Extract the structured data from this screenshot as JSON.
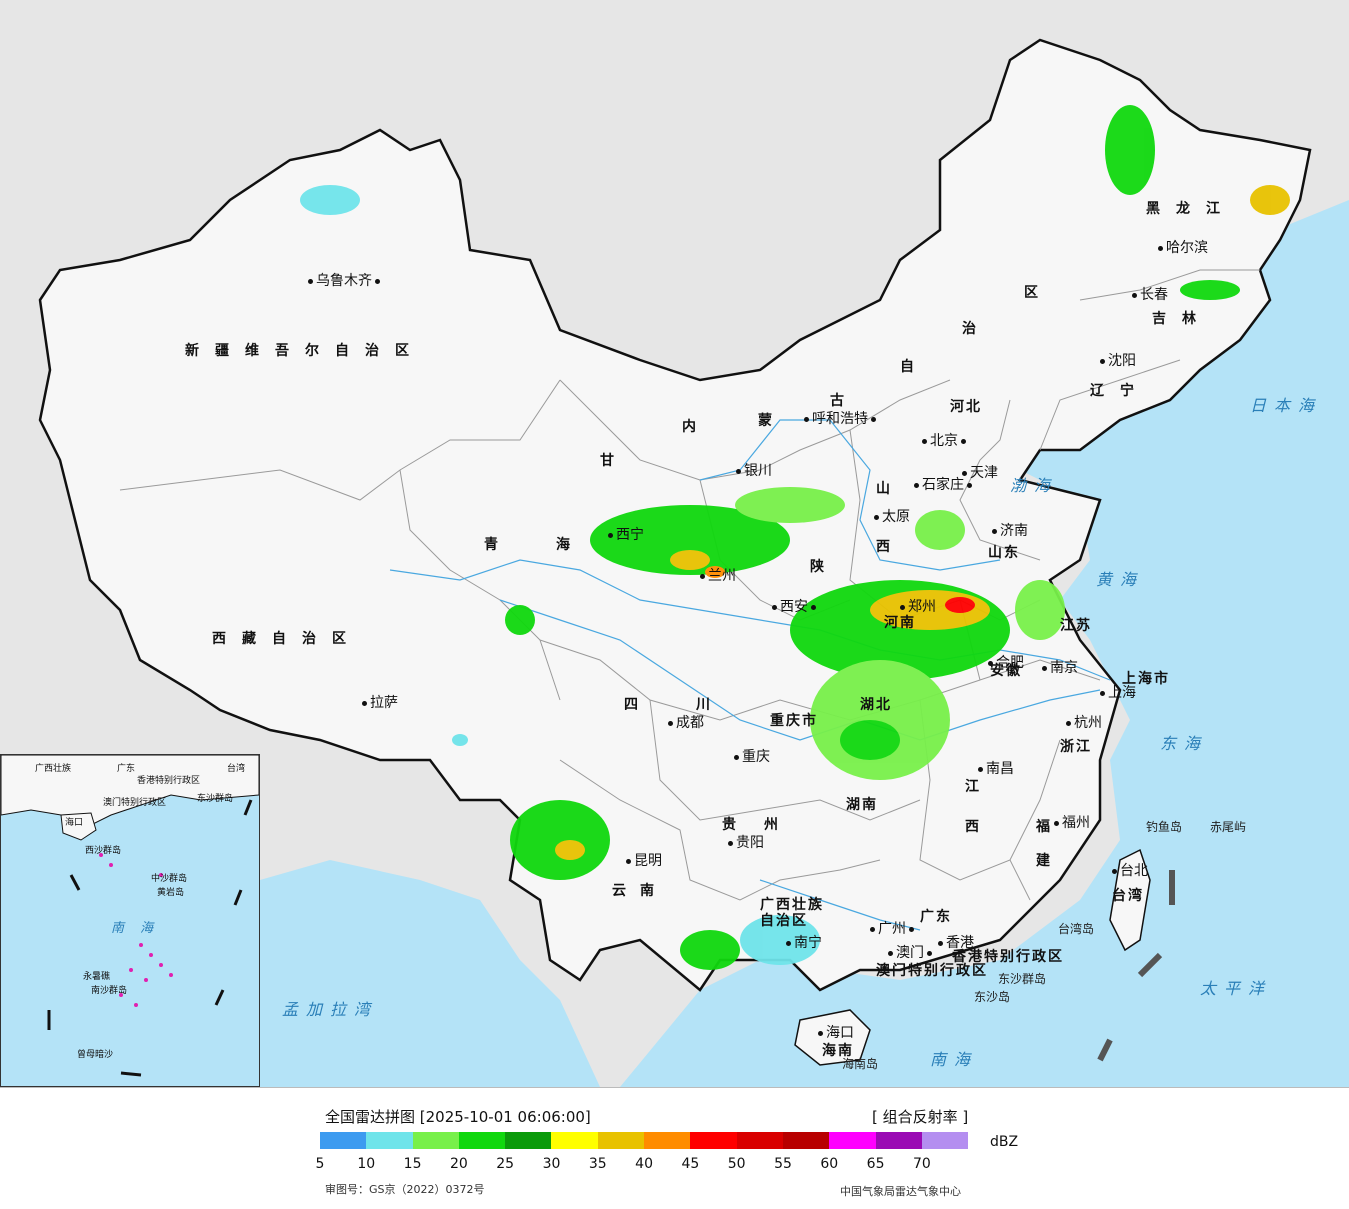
{
  "legend": {
    "title": "全国雷达拼图 [2025-10-01 06:06:00]",
    "product": "[ 组合反射率 ]",
    "unit": "dBZ",
    "colors": [
      "#3d9bf0",
      "#6fe4ea",
      "#78f04a",
      "#10d80e",
      "#0a9a0a",
      "#ffff00",
      "#e8c200",
      "#ff8c00",
      "#ff0000",
      "#d90000",
      "#b80000",
      "#ff00ff",
      "#9a0ab4",
      "#b48ef0"
    ],
    "ticks": [
      "5",
      "10",
      "15",
      "20",
      "25",
      "30",
      "35",
      "40",
      "45",
      "50",
      "55",
      "60",
      "65",
      "70"
    ],
    "review_no": "审图号：GS京（2022）0372号",
    "source": "中国气象局雷达气象中心"
  },
  "map": {
    "colors": {
      "land": "#f7f7f7",
      "sea": "#b4e3f7",
      "outside": "#e6e6e6",
      "border": "#111111",
      "province": "#9a9a9a",
      "river": "#4aa8e0"
    },
    "provinces": [
      {
        "id": "xinjiang",
        "text": "新疆维吾尔自治区"
      },
      {
        "id": "xizang",
        "text": "西藏自治区"
      },
      {
        "id": "qinghai-1",
        "text": "青"
      },
      {
        "id": "qinghai-2",
        "text": "海"
      },
      {
        "id": "gansu",
        "text": "甘"
      },
      {
        "id": "sichuan-1",
        "text": "四"
      },
      {
        "id": "sichuan-2",
        "text": "川"
      },
      {
        "id": "yunnan-1",
        "text": "云"
      },
      {
        "id": "yunnan-2",
        "text": "南"
      },
      {
        "id": "guizhou-1",
        "text": "贵"
      },
      {
        "id": "guizhou-2",
        "text": "州"
      },
      {
        "id": "chongqing",
        "text": "重庆市"
      },
      {
        "id": "shaanxi",
        "text": "陕"
      },
      {
        "id": "shanxi-1",
        "text": "山"
      },
      {
        "id": "shanxi-2",
        "text": "西"
      },
      {
        "id": "henan",
        "text": "河南"
      },
      {
        "id": "hubei",
        "text": "湖北"
      },
      {
        "id": "hunan",
        "text": "湖南"
      },
      {
        "id": "hebei",
        "text": "河北"
      },
      {
        "id": "shandong",
        "text": "山东"
      },
      {
        "id": "jiangsu",
        "text": "江苏"
      },
      {
        "id": "anhui",
        "text": "安徽"
      },
      {
        "id": "zhejiang",
        "text": "浙江"
      },
      {
        "id": "jiangxi-1",
        "text": "江"
      },
      {
        "id": "jiangxi-2",
        "text": "西"
      },
      {
        "id": "fujian-1",
        "text": "福"
      },
      {
        "id": "fujian-2",
        "text": "建"
      },
      {
        "id": "guangdong",
        "text": "广东"
      },
      {
        "id": "guangxi-1",
        "text": "广西壮族"
      },
      {
        "id": "guangxi-2",
        "text": "自治区"
      },
      {
        "id": "hainan",
        "text": "海南"
      },
      {
        "id": "taiwan",
        "text": "台湾"
      },
      {
        "id": "heilongjiang",
        "text": "黑龙江"
      },
      {
        "id": "jilin",
        "text": "吉林"
      },
      {
        "id": "liaoning",
        "text": "辽宁"
      },
      {
        "id": "neimenggu-1",
        "text": "内"
      },
      {
        "id": "neimenggu-2",
        "text": "蒙"
      },
      {
        "id": "neimenggu-3",
        "text": "古"
      },
      {
        "id": "neimenggu-4",
        "text": "自"
      },
      {
        "id": "neimenggu-5",
        "text": "治"
      },
      {
        "id": "neimenggu-6",
        "text": "区"
      },
      {
        "id": "shanghai",
        "text": "上海市"
      },
      {
        "id": "hongkong",
        "text": "香港特别行政区"
      },
      {
        "id": "macau",
        "text": "澳门特别行政区"
      }
    ],
    "cities": [
      {
        "id": "urumqi",
        "text": "乌鲁木齐"
      },
      {
        "id": "lhasa",
        "text": "拉萨"
      },
      {
        "id": "xining",
        "text": "西宁"
      },
      {
        "id": "yinchuan",
        "text": "银川"
      },
      {
        "id": "lanzhou",
        "text": "兰州"
      },
      {
        "id": "chengdu",
        "text": "成都"
      },
      {
        "id": "chongqing-city",
        "text": "重庆"
      },
      {
        "id": "guiyang",
        "text": "贵阳"
      },
      {
        "id": "kunming",
        "text": "昆明"
      },
      {
        "id": "nanning",
        "text": "南宁"
      },
      {
        "id": "guangzhou",
        "text": "广州"
      },
      {
        "id": "xian",
        "text": "西安"
      },
      {
        "id": "taiyuan",
        "text": "太原"
      },
      {
        "id": "shijiazhuang",
        "text": "石家庄"
      },
      {
        "id": "beijing",
        "text": "北京"
      },
      {
        "id": "tianjin",
        "text": "天津"
      },
      {
        "id": "jinan",
        "text": "济南"
      },
      {
        "id": "zhengzhou",
        "text": "郑州"
      },
      {
        "id": "hefei",
        "text": "合肥"
      },
      {
        "id": "nanjing",
        "text": "南京"
      },
      {
        "id": "hangzhou",
        "text": "杭州"
      },
      {
        "id": "nanchang",
        "text": "南昌"
      },
      {
        "id": "fuzhou",
        "text": "福州"
      },
      {
        "id": "taibei",
        "text": "台北"
      },
      {
        "id": "haikou",
        "text": "海口"
      },
      {
        "id": "macau-city",
        "text": "澳门"
      },
      {
        "id": "hk-city",
        "text": "香港"
      },
      {
        "id": "huhehaote",
        "text": "呼和浩特"
      },
      {
        "id": "shenyang",
        "text": "沈阳"
      },
      {
        "id": "changchun",
        "text": "长春"
      },
      {
        "id": "harbin",
        "text": "哈尔滨"
      },
      {
        "id": "shanghai-city",
        "text": "上海"
      }
    ],
    "seas": [
      {
        "id": "bohai",
        "text": "渤海"
      },
      {
        "id": "huanghai",
        "text": "黄海"
      },
      {
        "id": "donghai",
        "text": "东海"
      },
      {
        "id": "nanhai",
        "text": "南海"
      },
      {
        "id": "taipingyang",
        "text": "太平洋"
      },
      {
        "id": "ribenhai",
        "text": "日本海"
      },
      {
        "id": "mengjialawan",
        "text": "孟加拉湾"
      }
    ],
    "islands": [
      {
        "id": "diaoyudao",
        "text": "钓鱼岛"
      },
      {
        "id": "chiweiyu",
        "text": "赤尾屿"
      },
      {
        "id": "taiwandao",
        "text": "台湾岛"
      },
      {
        "id": "dongsha",
        "text": "东沙群岛"
      },
      {
        "id": "dongshadao",
        "text": "东沙岛"
      },
      {
        "id": "hainandao",
        "text": "海南岛"
      }
    ]
  },
  "inset": {
    "labels": [
      {
        "id": "i-guangxi",
        "text": "广西壮族"
      },
      {
        "id": "i-guangdong",
        "text": "广东"
      },
      {
        "id": "i-taiwan",
        "text": "台湾"
      },
      {
        "id": "i-hk",
        "text": "香港特别行政区"
      },
      {
        "id": "i-macau",
        "text": "澳门特别行政区"
      },
      {
        "id": "i-dongsha",
        "text": "东沙群岛"
      },
      {
        "id": "i-haikou",
        "text": "海口"
      },
      {
        "id": "i-xisha",
        "text": "西沙群岛"
      },
      {
        "id": "i-zhongsha",
        "text": "中沙群岛"
      },
      {
        "id": "i-huangyan",
        "text": "黄岩岛"
      },
      {
        "id": "i-nansha",
        "text": "南沙群岛"
      },
      {
        "id": "i-yongshu",
        "text": "永暑礁"
      },
      {
        "id": "i-zengmu",
        "text": "曾母暗沙"
      }
    ],
    "sea": "南  海"
  }
}
